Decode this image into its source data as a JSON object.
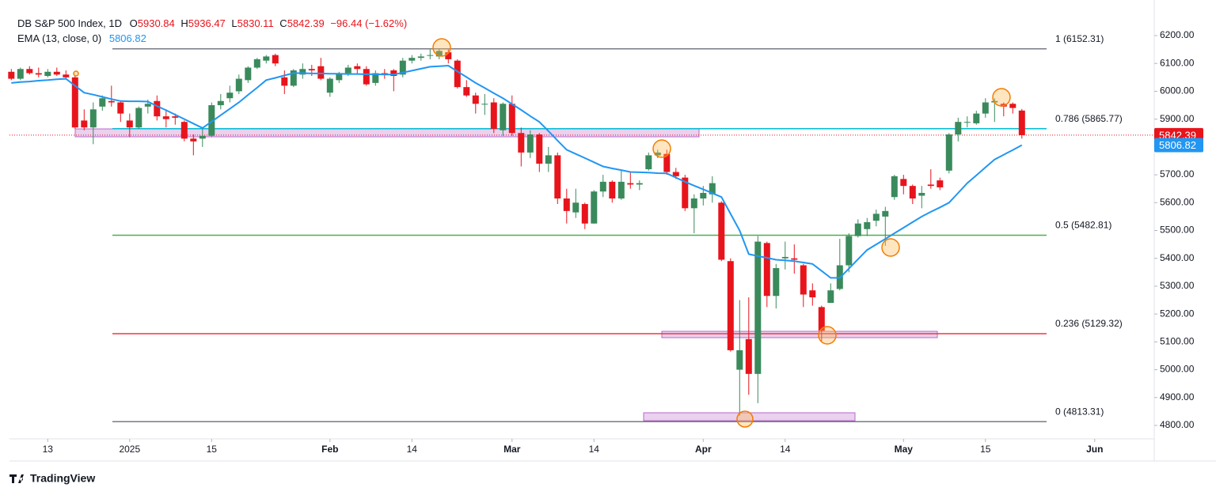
{
  "chart_data": {
    "type": "candlestick",
    "title": "DB S&P 500 Index, 1D",
    "ohlc_labels": [
      "O",
      "H",
      "L",
      "C"
    ],
    "change_label": "−96.44 (−1.62%)",
    "up_color": "#3a8a5c",
    "down_color": "#e8141c",
    "ylim": [
      4751.7,
      6242.6
    ],
    "yticks": [
      {
        "value": 4800,
        "label": "4800.00"
      },
      {
        "value": 4900,
        "label": "4900.00"
      },
      {
        "value": 5000,
        "label": "5000.00"
      },
      {
        "value": 5100,
        "label": "5100.00"
      },
      {
        "value": 5200,
        "label": "5200.00"
      },
      {
        "value": 5300,
        "label": "5300.00"
      },
      {
        "value": 5400,
        "label": "5400.00"
      },
      {
        "value": 5500,
        "label": "5500.00"
      },
      {
        "value": 5600,
        "label": "5600.00"
      },
      {
        "value": 5700,
        "label": "5700.00"
      },
      {
        "value": 5800,
        "label": "5800.00"
      },
      {
        "value": 5900,
        "label": "5900.00"
      },
      {
        "value": 6000,
        "label": "6000.00"
      },
      {
        "value": 6100,
        "label": "6100.00"
      },
      {
        "value": 6200,
        "label": "6200.00"
      }
    ],
    "xlim": [
      -0.2,
      125.54
    ],
    "xticks": [
      {
        "value": 4,
        "label": "13"
      },
      {
        "value": 13,
        "label": "2025"
      },
      {
        "value": 22,
        "label": "15"
      },
      {
        "value": 35,
        "label": "Feb"
      },
      {
        "value": 44,
        "label": "14"
      },
      {
        "value": 55,
        "label": "Mar"
      },
      {
        "value": 64,
        "label": "14"
      },
      {
        "value": 76,
        "label": "Apr"
      },
      {
        "value": 85,
        "label": "14"
      },
      {
        "value": 98,
        "label": "May"
      },
      {
        "value": 107,
        "label": "15"
      },
      {
        "value": 119,
        "label": "Jun"
      }
    ],
    "candles": {
      "open": [
        6070,
        6045,
        6080,
        6065,
        6055,
        6070,
        6060,
        6050,
        5895,
        5870,
        5945,
        5965,
        5960,
        5895,
        5870,
        5945,
        5965,
        5910,
        5910,
        5890,
        5830,
        5830,
        5840,
        5950,
        5975,
        6000,
        6040,
        6085,
        6110,
        6130,
        6050,
        6020,
        6060,
        6080,
        6090,
        5995,
        6040,
        6065,
        6090,
        6080,
        6030,
        6065,
        6075,
        6060,
        6110,
        6120,
        6130,
        6125,
        6140,
        6110,
        6015,
        5985,
        5955,
        5960,
        5860,
        5955,
        5850,
        5780,
        5845,
        5740,
        5770,
        5615,
        5565,
        5595,
        5525,
        5640,
        5675,
        5615,
        5670,
        5665,
        5720,
        5770,
        5775,
        5710,
        5690,
        5580,
        5615,
        5630,
        5600,
        5390,
        5000,
        5110,
        4985,
        5455,
        5265,
        5400,
        5400,
        5375,
        5285,
        5225,
        5240,
        5290,
        5375,
        5480,
        5505,
        5535,
        5550,
        5620,
        5685,
        5660,
        5625,
        5665,
        5680,
        5715,
        5845,
        5890,
        5885,
        5920,
        5960,
        5955,
        5955,
        5930.84
      ],
      "high": [
        6080,
        6085,
        6090,
        6085,
        6080,
        6085,
        6075,
        6055,
        5935,
        5960,
        5985,
        6020,
        5965,
        5920,
        5945,
        5970,
        5985,
        5935,
        5920,
        5895,
        5845,
        5870,
        5960,
        5990,
        6020,
        6060,
        6090,
        6120,
        6130,
        6135,
        6075,
        6080,
        6100,
        6095,
        6120,
        6050,
        6070,
        6095,
        6100,
        6090,
        6075,
        6080,
        6080,
        6120,
        6130,
        6135,
        6150,
        6152,
        6150,
        6115,
        6040,
        5995,
        5990,
        5975,
        5960,
        5985,
        5870,
        5860,
        5850,
        5800,
        5780,
        5650,
        5650,
        5600,
        5645,
        5700,
        5680,
        5715,
        5710,
        5680,
        5780,
        5790,
        5790,
        5725,
        5700,
        5630,
        5660,
        5695,
        5605,
        5400,
        5250,
        5260,
        5480,
        5460,
        5380,
        5460,
        5450,
        5380,
        5310,
        5230,
        5310,
        5470,
        5490,
        5540,
        5545,
        5575,
        5585,
        5700,
        5700,
        5665,
        5660,
        5720,
        5690,
        5850,
        5905,
        5910,
        5930,
        5975,
        5975,
        5960,
        5960,
        5936.47
      ],
      "low": [
        6040,
        6040,
        6060,
        6050,
        6050,
        6055,
        6045,
        5865,
        5860,
        5810,
        5930,
        5945,
        5890,
        5835,
        5865,
        5920,
        5895,
        5870,
        5880,
        5820,
        5770,
        5800,
        5835,
        5935,
        5960,
        5990,
        6030,
        6080,
        6100,
        6090,
        5990,
        6015,
        6045,
        6055,
        6040,
        5980,
        6030,
        6055,
        6060,
        6020,
        6020,
        6045,
        6000,
        6050,
        6100,
        6110,
        6115,
        6115,
        6100,
        6010,
        5980,
        5920,
        5915,
        5850,
        5840,
        5840,
        5730,
        5760,
        5710,
        5710,
        5595,
        5525,
        5545,
        5505,
        5525,
        5620,
        5600,
        5610,
        5650,
        5645,
        5715,
        5760,
        5700,
        5685,
        5570,
        5490,
        5590,
        5600,
        5390,
        5065,
        4835,
        4910,
        4880,
        5225,
        5220,
        5360,
        5345,
        5225,
        5230,
        5100,
        5240,
        5285,
        5350,
        5475,
        5480,
        5515,
        5445,
        5610,
        5630,
        5595,
        5580,
        5650,
        5645,
        5705,
        5820,
        5870,
        5880,
        5905,
        5890,
        5910,
        5920,
        5830.11
      ],
      "close": [
        6045,
        6080,
        6065,
        6060,
        6070,
        6060,
        6050,
        5870,
        5870,
        5935,
        5975,
        5960,
        5920,
        5870,
        5940,
        5955,
        5910,
        5900,
        5905,
        5830,
        5820,
        5840,
        5950,
        5965,
        5995,
        6045,
        6085,
        6115,
        6125,
        6100,
        6020,
        6075,
        6080,
        6075,
        6045,
        6045,
        6065,
        6085,
        6080,
        6025,
        6065,
        6060,
        6055,
        6110,
        6120,
        6125,
        6130,
        6145,
        6115,
        6015,
        5985,
        5955,
        5955,
        5865,
        5955,
        5850,
        5780,
        5845,
        5740,
        5770,
        5615,
        5570,
        5600,
        5525,
        5640,
        5675,
        5615,
        5675,
        5665,
        5670,
        5770,
        5780,
        5710,
        5695,
        5580,
        5615,
        5635,
        5670,
        5395,
        5070,
        5070,
        4985,
        5460,
        5265,
        5365,
        5405,
        5395,
        5270,
        5260,
        5140,
        5285,
        5375,
        5480,
        5525,
        5530,
        5560,
        5570,
        5695,
        5660,
        5615,
        5635,
        5660,
        5655,
        5845,
        5890,
        5890,
        5920,
        5960,
        5965,
        5945,
        5940,
        5842.39
      ]
    },
    "ema": {
      "name": "EMA (13, close, 0)",
      "color": "#2196f3",
      "values": [
        6030,
        6033,
        6035,
        6038,
        6040,
        6043,
        6045,
        6020,
        5995,
        5988,
        5980,
        5972,
        5965,
        5964,
        5964,
        5963,
        5947,
        5932,
        5916,
        5900,
        5884,
        5868,
        5891,
        5914,
        5937,
        5960,
        5987,
        6013,
        6040,
        6048,
        6057,
        6065,
        6065,
        6064,
        6064,
        6063,
        6063,
        6062,
        6062,
        6061,
        6061,
        6060,
        6060,
        6067,
        6074,
        6081,
        6088,
        6090,
        6092,
        6071,
        6051,
        6030,
        6012,
        5993,
        5975,
        5954,
        5933,
        5911,
        5890,
        5857,
        5823,
        5790,
        5775,
        5760,
        5745,
        5730,
        5723,
        5717,
        5710,
        5709,
        5708,
        5706,
        5705,
        5690,
        5675,
        5661,
        5648,
        5634,
        5620,
        5560,
        5500,
        5415,
        5408,
        5402,
        5395,
        5393,
        5390,
        5385,
        5380,
        5355,
        5330,
        5330,
        5363,
        5397,
        5430,
        5450,
        5470,
        5490,
        5510,
        5530,
        5550,
        5567,
        5583,
        5600,
        5635,
        5670,
        5698,
        5727,
        5755,
        5772,
        5789,
        5806.82
      ]
    },
    "fib_levels": [
      {
        "label": "1 (6152.31)",
        "value": 6152.31,
        "color": "#787b86"
      },
      {
        "label": "0.786 (5865.77)",
        "value": 5865.77,
        "color": "#00bcd4"
      },
      {
        "label": "0.5 (5482.81)",
        "value": 5482.81,
        "color": "#4caf50"
      },
      {
        "label": "0.236 (5129.32)",
        "value": 5129.32,
        "color": "#f23645"
      },
      {
        "label": "0 (4813.31)",
        "value": 4813.31,
        "color": "#787b86"
      }
    ],
    "brand": "TradingView"
  }
}
